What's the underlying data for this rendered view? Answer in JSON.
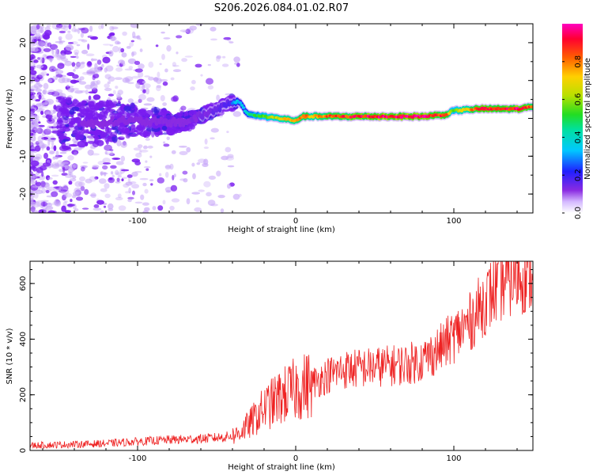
{
  "title": "S206.2026.084.01.02.R07",
  "colors": {
    "snr_line": "#ee2222",
    "frame": "#000000",
    "scatter": "#7a1cf0"
  },
  "chart_data": [
    {
      "type": "heatmap",
      "name": "spectrogram",
      "xlabel": "Height of straight line (km)",
      "ylabel": "Frequency (Hz)",
      "xlim": [
        -168,
        150
      ],
      "ylim": [
        -25,
        25
      ],
      "xticks": [
        -100,
        0,
        100
      ],
      "yticks": [
        -20,
        -10,
        0,
        10,
        20
      ],
      "colorbar": {
        "label": "Normalized spectral amplitude",
        "range": [
          0,
          1
        ],
        "ticks": [
          "0.0",
          "0.2",
          "0.4",
          "0.6",
          "0.8"
        ],
        "tick_values": [
          0.0,
          0.2,
          0.4,
          0.6,
          0.8
        ]
      },
      "ridge": {
        "x": [
          -168,
          -130,
          -110,
          -90,
          -70,
          -55,
          -42,
          -36,
          -30,
          -20,
          -10,
          -2,
          0,
          5,
          20,
          40,
          60,
          80,
          95,
          100,
          115,
          140,
          150
        ],
        "freq": [
          -1,
          -1.5,
          -0.5,
          -1,
          -1,
          1.5,
          4,
          4.5,
          1,
          0.5,
          0,
          -0.5,
          -0.5,
          0.5,
          0.5,
          0.5,
          0.5,
          0.5,
          1,
          2,
          2.5,
          2.5,
          3
        ],
        "amplitude": [
          0.15,
          0.2,
          0.2,
          0.2,
          0.2,
          0.25,
          0.3,
          0.35,
          0.45,
          0.6,
          0.7,
          0.75,
          0.8,
          0.8,
          0.85,
          0.95,
          1.0,
          1.0,
          0.9,
          0.6,
          0.9,
          0.95,
          0.9
        ]
      }
    },
    {
      "type": "line",
      "name": "snr",
      "xlabel": "Height of straight line (km)",
      "ylabel": "SNR (10 * v/v)",
      "xlim": [
        -168,
        150
      ],
      "ylim": [
        0,
        680
      ],
      "xticks": [
        -100,
        0,
        100
      ],
      "yticks": [
        0,
        200,
        400,
        600
      ],
      "trend": {
        "x": [
          -168,
          -140,
          -120,
          -100,
          -80,
          -60,
          -45,
          -38,
          -30,
          -20,
          -10,
          0,
          10,
          20,
          30,
          50,
          70,
          80,
          90,
          100,
          110,
          120,
          130,
          140,
          150
        ],
        "y": [
          18,
          22,
          25,
          32,
          38,
          42,
          48,
          55,
          90,
          150,
          190,
          220,
          240,
          270,
          290,
          300,
          310,
          325,
          360,
          410,
          460,
          540,
          600,
          630,
          640
        ]
      }
    }
  ]
}
